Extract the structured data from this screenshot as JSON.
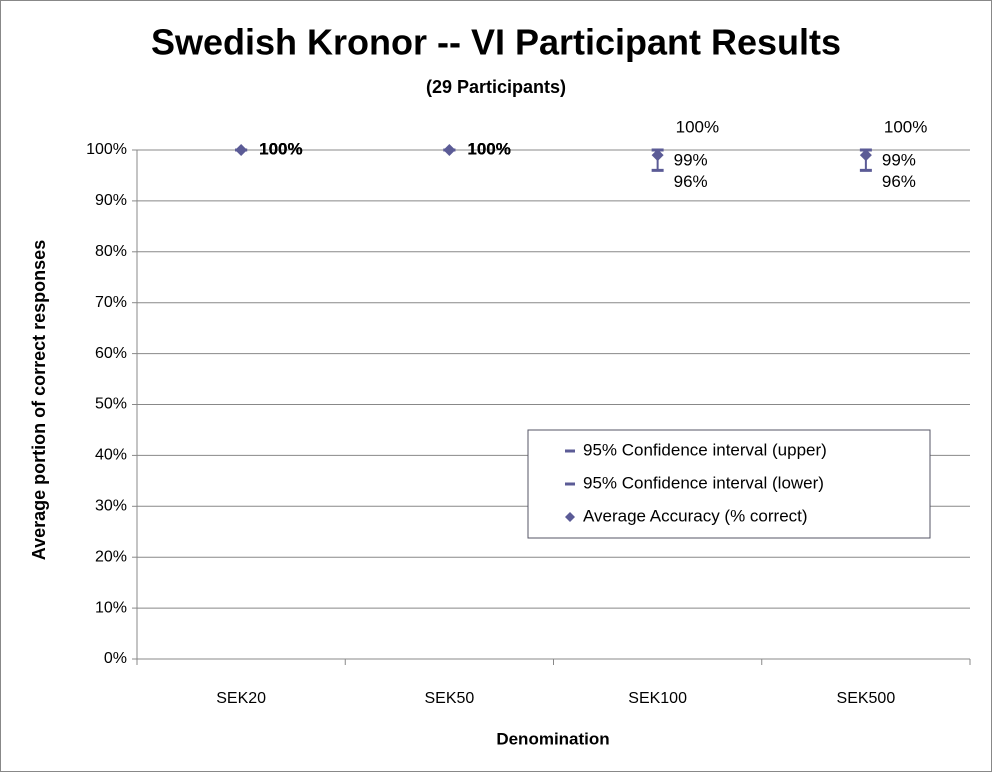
{
  "chart_data": {
    "type": "errorbar",
    "title": "Swedish Kronor -- VI Participant Results",
    "subtitle": "(29 Participants)",
    "x_label": "Denomination",
    "y_label": "Average portion of correct responses",
    "categories": [
      "SEK20",
      "SEK50",
      "SEK100",
      "SEK500"
    ],
    "series": [
      {
        "name": "95% Confidence interval (upper)",
        "color": "#5b5b96",
        "marker": "dash",
        "values": [
          100,
          100,
          100,
          100
        ],
        "value_labels": [
          "100%",
          "100%",
          "100%",
          "100%"
        ]
      },
      {
        "name": "95% Confidence interval (lower)",
        "color": "#5b5b96",
        "marker": "dash",
        "values": [
          100,
          100,
          96,
          96
        ],
        "value_labels": [
          "100%",
          "100%",
          "96%",
          "96%"
        ]
      },
      {
        "name": "Average Accuracy (% correct)",
        "color": "#5b5b96",
        "marker": "diamond",
        "values": [
          100,
          100,
          99,
          99
        ],
        "value_labels": [
          "100%",
          "100%",
          "99%",
          "99%"
        ]
      }
    ],
    "ylim": [
      0,
      100
    ],
    "yticks": [
      {
        "value": 0,
        "label": "0%"
      },
      {
        "value": 10,
        "label": "10%"
      },
      {
        "value": 20,
        "label": "20%"
      },
      {
        "value": 30,
        "label": "30%"
      },
      {
        "value": 40,
        "label": "40%"
      },
      {
        "value": 50,
        "label": "50%"
      },
      {
        "value": 60,
        "label": "60%"
      },
      {
        "value": 70,
        "label": "70%"
      },
      {
        "value": 80,
        "label": "80%"
      },
      {
        "value": 90,
        "label": "90%"
      },
      {
        "value": 100,
        "label": "100%"
      }
    ],
    "grid": true,
    "legend": "lower-right"
  }
}
